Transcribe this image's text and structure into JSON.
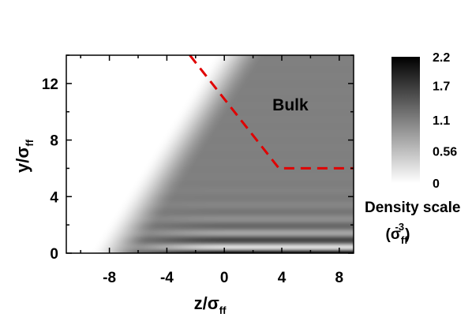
{
  "chart_data": {
    "type": "heatmap",
    "xlim": [
      -11,
      9
    ],
    "ylim": [
      0,
      14
    ],
    "x_ticks": [
      -8,
      -4,
      0,
      4,
      8
    ],
    "y_ticks": [
      0,
      4,
      8,
      12
    ],
    "x_tick_labels": [
      "-8",
      "-4",
      "0",
      "4",
      "8"
    ],
    "y_tick_labels": [
      "0",
      "4",
      "8",
      "12"
    ],
    "xlabel": {
      "main": "z/σ",
      "sub": "ff"
    },
    "ylabel": {
      "main": "y/σ",
      "sub": "ff"
    },
    "colormap": "gray_r",
    "bulk_density": 1.1,
    "grid": false,
    "annotation": {
      "text": "Bulk",
      "x": 4.6,
      "y": 10.5
    },
    "boundary_line": {
      "style": "dashed",
      "color": "#e00000",
      "points": [
        [
          -2.4,
          14
        ],
        [
          3.8,
          6
        ],
        [
          9,
          6
        ]
      ]
    },
    "colorbar": {
      "ticks": [
        0,
        0.56,
        1.1,
        1.7,
        2.2
      ],
      "tick_labels": [
        "0",
        "0.56",
        "1.1",
        "1.7",
        "2.2"
      ],
      "range": [
        0,
        2.2
      ],
      "title": "Density scale",
      "unit_prefix": "(σ",
      "unit_sub": "ff",
      "unit_sup": "-3",
      "unit_suffix": ")"
    }
  }
}
